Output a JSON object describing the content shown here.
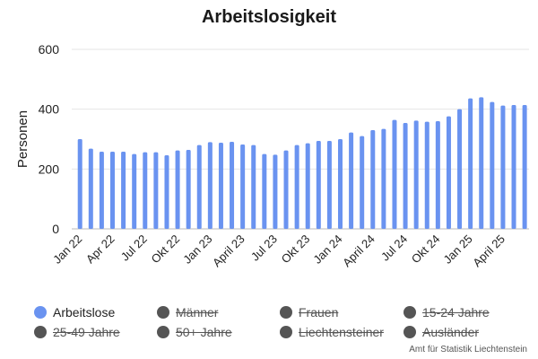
{
  "chart_data": {
    "type": "bar",
    "title": "Arbeitslosigkeit",
    "ylabel": "Personen",
    "ylim": [
      0,
      600
    ],
    "yticks": [
      0,
      200,
      400,
      600
    ],
    "grid": true,
    "categories": [
      "Jan 22",
      "Feb 22",
      "Mar 22",
      "Apr 22",
      "May 22",
      "Jun 22",
      "Jul 22",
      "Aug 22",
      "Sep 22",
      "Okt 22",
      "Nov 22",
      "Dec 22",
      "Jan 23",
      "Feb 23",
      "Mar 23",
      "April 23",
      "May 23",
      "Jun 23",
      "Jul 23",
      "Aug 23",
      "Sep 23",
      "Okt 23",
      "Nov 23",
      "Dec 23",
      "Jan 24",
      "Feb 24",
      "Mar 24",
      "April 24",
      "May 24",
      "Jun 24",
      "Jul 24",
      "Aug 24",
      "Sep 24",
      "Okt 24",
      "Nov 24",
      "Dec 24",
      "Jan 25",
      "Feb 25",
      "Mar 25",
      "April 25",
      "May 25",
      "Jun 25"
    ],
    "xtick_labels": [
      {
        "index": 0,
        "label": "Jan 22"
      },
      {
        "index": 3,
        "label": "Apr 22"
      },
      {
        "index": 6,
        "label": "Jul 22"
      },
      {
        "index": 9,
        "label": "Okt 22"
      },
      {
        "index": 12,
        "label": "Jan 23"
      },
      {
        "index": 15,
        "label": "April 23"
      },
      {
        "index": 18,
        "label": "Jul 23"
      },
      {
        "index": 21,
        "label": "Okt 23"
      },
      {
        "index": 24,
        "label": "Jan 24"
      },
      {
        "index": 27,
        "label": "April 24"
      },
      {
        "index": 30,
        "label": "Jul 24"
      },
      {
        "index": 33,
        "label": "Okt 24"
      },
      {
        "index": 36,
        "label": "Jan 25"
      },
      {
        "index": 39,
        "label": "April 25"
      }
    ],
    "series": [
      {
        "name": "Arbeitslose",
        "color": "#6a93f0",
        "values": [
          300,
          268,
          258,
          258,
          258,
          250,
          256,
          256,
          246,
          262,
          264,
          280,
          290,
          288,
          291,
          282,
          280,
          250,
          248,
          262,
          280,
          286,
          294,
          294,
          300,
          322,
          310,
          330,
          334,
          364,
          354,
          362,
          358,
          360,
          376,
          400,
          436,
          440,
          424,
          412,
          414,
          414
        ]
      }
    ],
    "legend": {
      "placement": "bottom",
      "items": [
        {
          "label": "Arbeitslose",
          "active": true,
          "color": "#6a93f0"
        },
        {
          "label": "Männer",
          "active": false,
          "color": "#555555"
        },
        {
          "label": "Frauen",
          "active": false,
          "color": "#555555"
        },
        {
          "label": "15-24 Jahre",
          "active": false,
          "color": "#555555"
        },
        {
          "label": "25-49 Jahre",
          "active": false,
          "color": "#555555"
        },
        {
          "label": "50+ Jahre",
          "active": false,
          "color": "#555555"
        },
        {
          "label": "Liechtensteiner",
          "active": false,
          "color": "#555555"
        },
        {
          "label": "Ausländer",
          "active": false,
          "color": "#555555"
        }
      ]
    },
    "credit": "Amt für Statistik Liechtenstein"
  }
}
